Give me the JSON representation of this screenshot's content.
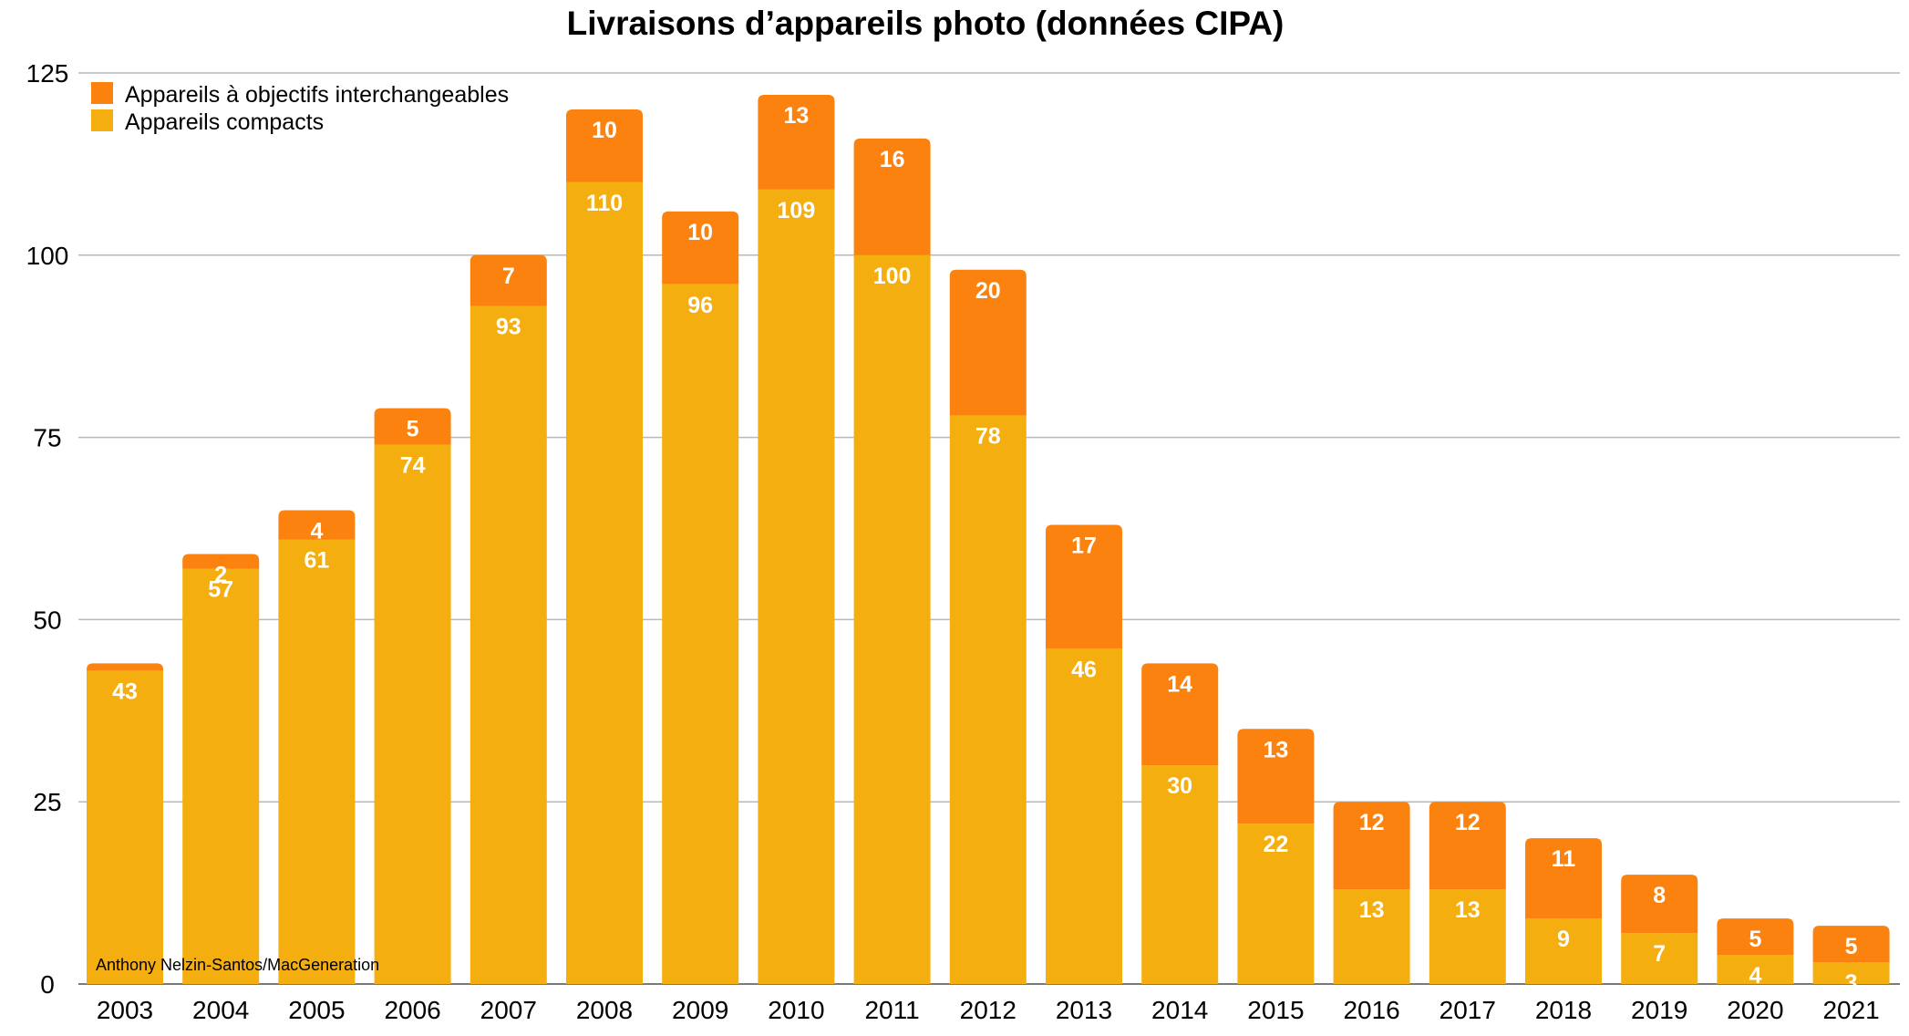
{
  "chart_data": {
    "type": "bar",
    "stacked": true,
    "title": "Livraisons d’appareils photo (données CIPA)",
    "xlabel": "",
    "ylabel": "",
    "ylim": [
      0,
      125
    ],
    "yticks": [
      0,
      25,
      50,
      75,
      100,
      125
    ],
    "grid": true,
    "legend_position": "top-left",
    "categories": [
      "2003",
      "2004",
      "2005",
      "2006",
      "2007",
      "2008",
      "2009",
      "2010",
      "2011",
      "2012",
      "2013",
      "2014",
      "2015",
      "2016",
      "2017",
      "2018",
      "2019",
      "2020",
      "2021"
    ],
    "series": [
      {
        "name": "Appareils compacts",
        "color": "#F5AE10",
        "values": [
          43,
          57,
          61,
          74,
          93,
          110,
          96,
          109,
          100,
          78,
          46,
          30,
          22,
          13,
          13,
          9,
          7,
          4,
          3
        ],
        "labels": [
          "43",
          "57",
          "61",
          "74",
          "93",
          "110",
          "96",
          "109",
          "100",
          "78",
          "46",
          "30",
          "22",
          "13",
          "13",
          "9",
          "7",
          "4",
          "3"
        ]
      },
      {
        "name": "Appareils à objectifs interchangeables",
        "color": "#FB820E",
        "values": [
          1,
          2,
          4,
          5,
          7,
          10,
          10,
          13,
          16,
          20,
          17,
          14,
          13,
          12,
          12,
          11,
          8,
          5,
          5
        ],
        "labels": [
          "",
          "2",
          "4",
          "5",
          "7",
          "10",
          "10",
          "13",
          "16",
          "20",
          "17",
          "14",
          "13",
          "12",
          "12",
          "11",
          "8",
          "5",
          "5"
        ]
      }
    ],
    "annotation": "Anthony Nelzin-Santos/MacGeneration"
  }
}
